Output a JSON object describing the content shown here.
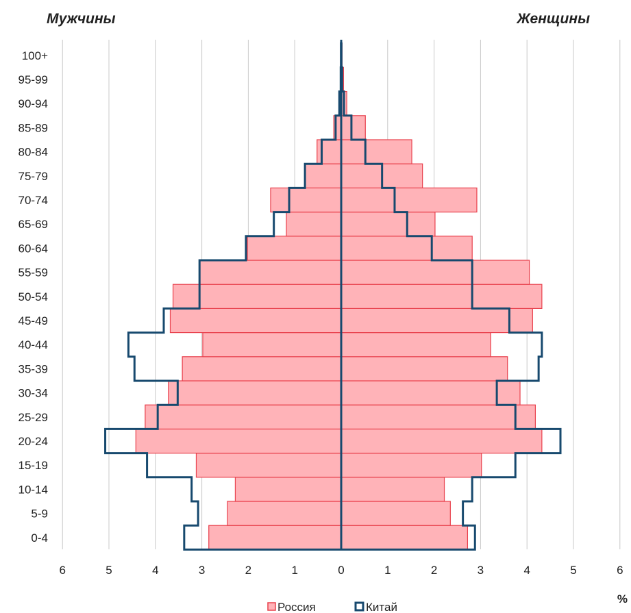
{
  "chart_data": {
    "type": "bar",
    "subtype": "population-pyramid",
    "title_left": "Мужчины",
    "title_right": "Женщины",
    "unit_label": "%",
    "categories": [
      "0-4",
      "5-9",
      "10-14",
      "15-19",
      "20-24",
      "25-29",
      "30-34",
      "35-39",
      "40-44",
      "45-49",
      "50-54",
      "55-59",
      "60-64",
      "65-69",
      "70-74",
      "75-79",
      "80-84",
      "85-89",
      "90-94",
      "95-99",
      "100+"
    ],
    "x_ticks": [
      6,
      5,
      4,
      3,
      2,
      1,
      0,
      1,
      2,
      3,
      4,
      5,
      6
    ],
    "xlim": [
      -6,
      6
    ],
    "grid": true,
    "legend_position": "bottom",
    "series": [
      {
        "name": "Россия",
        "style": "filled",
        "fill_color": "#ffb3b8",
        "edge_color": "#e8404c",
        "men": [
          2.85,
          2.45,
          2.28,
          3.12,
          4.42,
          4.22,
          3.72,
          3.42,
          2.98,
          3.68,
          3.62,
          3.05,
          2.02,
          1.18,
          1.52,
          0.78,
          0.52,
          0.16,
          0.05,
          0.02,
          0.01
        ],
        "women": [
          2.72,
          2.35,
          2.22,
          3.02,
          4.32,
          4.18,
          3.85,
          3.58,
          3.22,
          4.12,
          4.32,
          4.05,
          2.82,
          2.02,
          2.92,
          1.75,
          1.52,
          0.52,
          0.12,
          0.05,
          0.02
        ]
      },
      {
        "name": "Китай",
        "style": "outline",
        "edge_color": "#17496e",
        "men": [
          3.38,
          3.08,
          3.22,
          4.18,
          5.08,
          3.95,
          3.52,
          4.45,
          4.58,
          3.82,
          3.05,
          3.05,
          2.05,
          1.45,
          1.12,
          0.78,
          0.42,
          0.12,
          0.04,
          0.01,
          0.005
        ],
        "women": [
          2.88,
          2.62,
          2.82,
          3.75,
          4.72,
          3.75,
          3.35,
          4.25,
          4.32,
          3.62,
          2.82,
          2.82,
          1.95,
          1.42,
          1.15,
          0.88,
          0.52,
          0.22,
          0.06,
          0.02,
          0.005
        ]
      }
    ]
  }
}
